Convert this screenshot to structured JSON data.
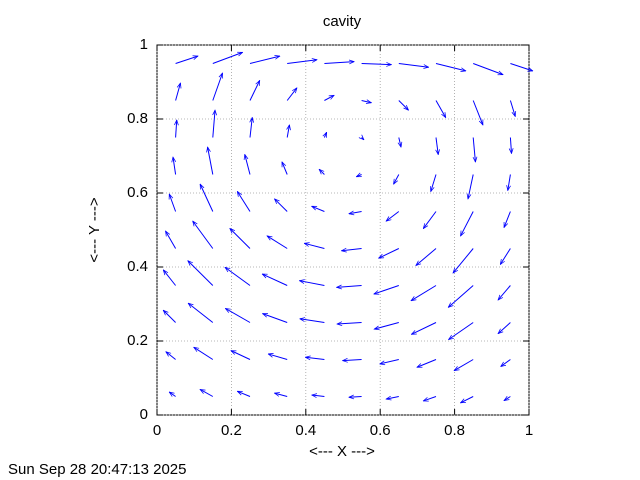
{
  "chart_data": {
    "type": "vector",
    "title": "cavity",
    "xlabel": "<--- X --->",
    "ylabel": "<--- Y --->",
    "timestamp": "Sun Sep 28 20:47:13 2025",
    "color": "#0000ff",
    "grid": true,
    "xlim": [
      0,
      1
    ],
    "ylim": [
      0,
      1
    ],
    "xticks": [
      0,
      0.2,
      0.4,
      0.6,
      0.8,
      1
    ],
    "yticks": [
      0,
      0.2,
      0.4,
      0.6,
      0.8,
      1
    ],
    "columns": [
      0.05,
      0.15,
      0.25,
      0.35,
      0.45,
      0.55,
      0.65,
      0.75,
      0.85,
      0.95
    ],
    "rows": [
      0.05,
      0.15,
      0.25,
      0.35,
      0.45,
      0.55,
      0.65,
      0.75,
      0.85,
      0.95
    ],
    "u": [
      [
        -0.017,
        -0.034,
        -0.034,
        -0.034,
        -0.034,
        -0.034,
        -0.034,
        -0.034,
        -0.034,
        -0.017
      ],
      [
        -0.026,
        -0.051,
        -0.051,
        -0.051,
        -0.051,
        -0.051,
        -0.051,
        -0.051,
        -0.051,
        -0.026
      ],
      [
        -0.033,
        -0.066,
        -0.066,
        -0.066,
        -0.066,
        -0.066,
        -0.066,
        -0.066,
        -0.066,
        -0.033
      ],
      [
        -0.033,
        -0.067,
        -0.067,
        -0.067,
        -0.067,
        -0.067,
        -0.067,
        -0.067,
        -0.067,
        -0.033
      ],
      [
        -0.027,
        -0.054,
        -0.054,
        -0.054,
        -0.054,
        -0.054,
        -0.054,
        -0.054,
        -0.054,
        -0.027
      ],
      [
        -0.017,
        -0.034,
        -0.034,
        -0.034,
        -0.034,
        -0.034,
        -0.034,
        -0.034,
        -0.034,
        -0.017
      ],
      [
        -0.007,
        -0.014,
        -0.014,
        -0.014,
        -0.014,
        -0.014,
        -0.014,
        -0.014,
        -0.014,
        -0.007
      ],
      [
        0.003,
        0.006,
        0.006,
        0.006,
        0.006,
        0.006,
        0.006,
        0.006,
        0.006,
        0.003
      ],
      [
        0.013,
        0.026,
        0.026,
        0.026,
        0.026,
        0.026,
        0.026,
        0.026,
        0.026,
        0.013
      ],
      [
        0.06,
        0.08,
        0.08,
        0.08,
        0.08,
        0.08,
        0.08,
        0.08,
        0.08,
        0.06
      ]
    ],
    "v": [
      [
        0.012,
        0.019,
        0.014,
        0.009,
        0.004,
        -0.002,
        -0.007,
        -0.012,
        -0.017,
        -0.011
      ],
      [
        0.021,
        0.033,
        0.024,
        0.015,
        0.006,
        -0.003,
        -0.012,
        -0.021,
        -0.03,
        -0.019
      ],
      [
        0.033,
        0.052,
        0.038,
        0.024,
        0.01,
        -0.004,
        -0.018,
        -0.032,
        -0.046,
        -0.03
      ],
      [
        0.042,
        0.067,
        0.049,
        0.031,
        0.013,
        -0.005,
        -0.023,
        -0.041,
        -0.059,
        -0.039
      ],
      [
        0.047,
        0.074,
        0.054,
        0.034,
        0.014,
        -0.006,
        -0.026,
        -0.046,
        -0.066,
        -0.043
      ],
      [
        0.047,
        0.074,
        0.054,
        0.034,
        0.014,
        -0.006,
        -0.026,
        -0.046,
        -0.066,
        -0.043
      ],
      [
        0.047,
        0.074,
        0.054,
        0.034,
        0.014,
        -0.006,
        -0.026,
        -0.046,
        -0.066,
        -0.043
      ],
      [
        0.047,
        0.074,
        0.054,
        0.034,
        0.014,
        -0.006,
        -0.026,
        -0.046,
        -0.066,
        -0.043
      ],
      [
        0.047,
        0.074,
        0.054,
        0.034,
        0.014,
        -0.006,
        -0.026,
        -0.046,
        -0.066,
        -0.043
      ],
      [
        0.02,
        0.03,
        0.02,
        0.01,
        0.005,
        -0.003,
        -0.01,
        -0.02,
        -0.03,
        -0.02
      ]
    ]
  }
}
